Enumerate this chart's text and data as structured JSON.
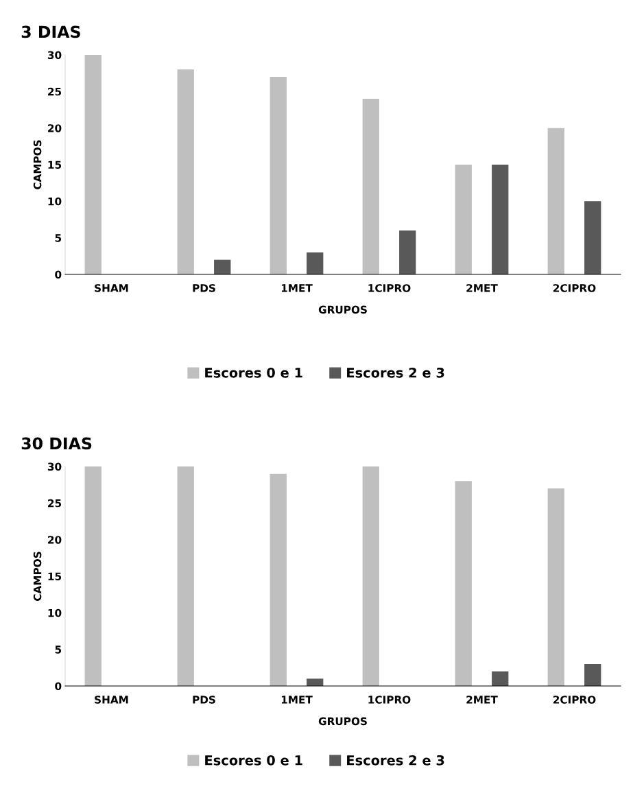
{
  "chart_data": [
    {
      "type": "bar",
      "title": "3 DIAS",
      "xlabel": "GRUPOS",
      "ylabel": "CAMPOS",
      "categories": [
        "SHAM",
        "PDS",
        "1MET",
        "1CIPRO",
        "2MET",
        "2CIPRO"
      ],
      "series": [
        {
          "name": "Escores 0 e 1",
          "color": "#bfbfbf",
          "values": [
            30,
            28,
            27,
            24,
            15,
            20
          ]
        },
        {
          "name": "Escores 2 e 3",
          "color": "#595959",
          "values": [
            0,
            2,
            3,
            6,
            15,
            10
          ]
        }
      ],
      "ylim": [
        0,
        30
      ],
      "yticks": [
        0,
        5,
        10,
        15,
        20,
        25,
        30
      ],
      "grid": false,
      "legend": "bottom"
    },
    {
      "type": "bar",
      "title": "30 DIAS",
      "xlabel": "GRUPOS",
      "ylabel": "CAMPOS",
      "categories": [
        "SHAM",
        "PDS",
        "1MET",
        "1CIPRO",
        "2MET",
        "2CIPRO"
      ],
      "series": [
        {
          "name": "Escores 0 e 1",
          "color": "#bfbfbf",
          "values": [
            30,
            30,
            29,
            30,
            28,
            27
          ]
        },
        {
          "name": "Escores 2 e 3",
          "color": "#595959",
          "values": [
            0,
            0,
            1,
            0,
            2,
            3
          ]
        }
      ],
      "ylim": [
        0,
        30
      ],
      "yticks": [
        0,
        5,
        10,
        15,
        20,
        25,
        30
      ],
      "grid": false,
      "legend": "bottom"
    }
  ]
}
